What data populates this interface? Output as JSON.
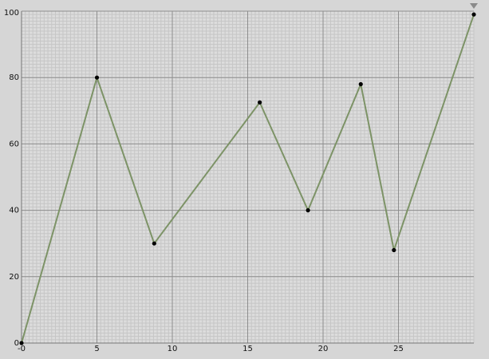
{
  "chart_data": {
    "type": "line",
    "title": "",
    "xlabel": "",
    "ylabel": "",
    "xlim": [
      0,
      30
    ],
    "ylim": [
      0,
      100
    ],
    "x_ticks": [
      0,
      5,
      10,
      15,
      20,
      25
    ],
    "x_tick_labels": [
      "-0",
      "5",
      "10",
      "15",
      "20",
      "25"
    ],
    "y_ticks": [
      0,
      20,
      40,
      60,
      80,
      100
    ],
    "y_tick_labels": [
      "0",
      "20",
      "40",
      "60",
      "80",
      "100"
    ],
    "grid": true,
    "series": [
      {
        "x": [
          0,
          5,
          8.8,
          15.8,
          19,
          22.5,
          24.7,
          30
        ],
        "y": [
          0,
          80,
          30,
          72.5,
          40,
          78,
          28,
          99
        ],
        "line_color": "#7d9367",
        "marker_color": "#000000"
      }
    ],
    "colors": {
      "background": "#d6d6d6",
      "plot_background": "#dcdcdc",
      "minor_grid": "#c6c6c6",
      "major_grid": "#8e8e8e",
      "axis": "#777777",
      "menu_arrow": "#8a8a8a"
    }
  }
}
